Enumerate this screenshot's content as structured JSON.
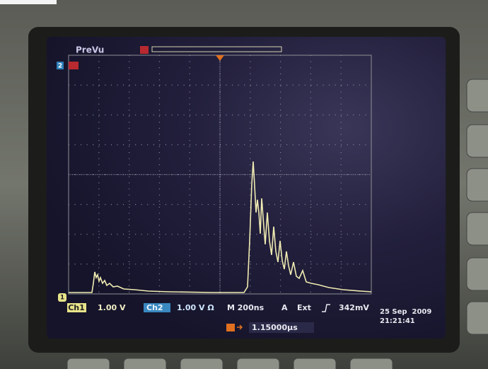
{
  "screen": {
    "mode": "PreVu",
    "channel_marker_2": "2",
    "channel_marker_1": "1",
    "status": {
      "ch1": "Ch1",
      "ch1_scale": "1.00 V",
      "ch2": "Ch2",
      "ch2_scale": "1.00 V Ω",
      "timebase": "M 200ns",
      "trigger_mode": "A",
      "trigger_source": "Ext",
      "trigger_level": "342mV"
    },
    "trigger_position": "1.15000µs",
    "date": "25 Sep  2009",
    "time": "21:21:41"
  }
}
